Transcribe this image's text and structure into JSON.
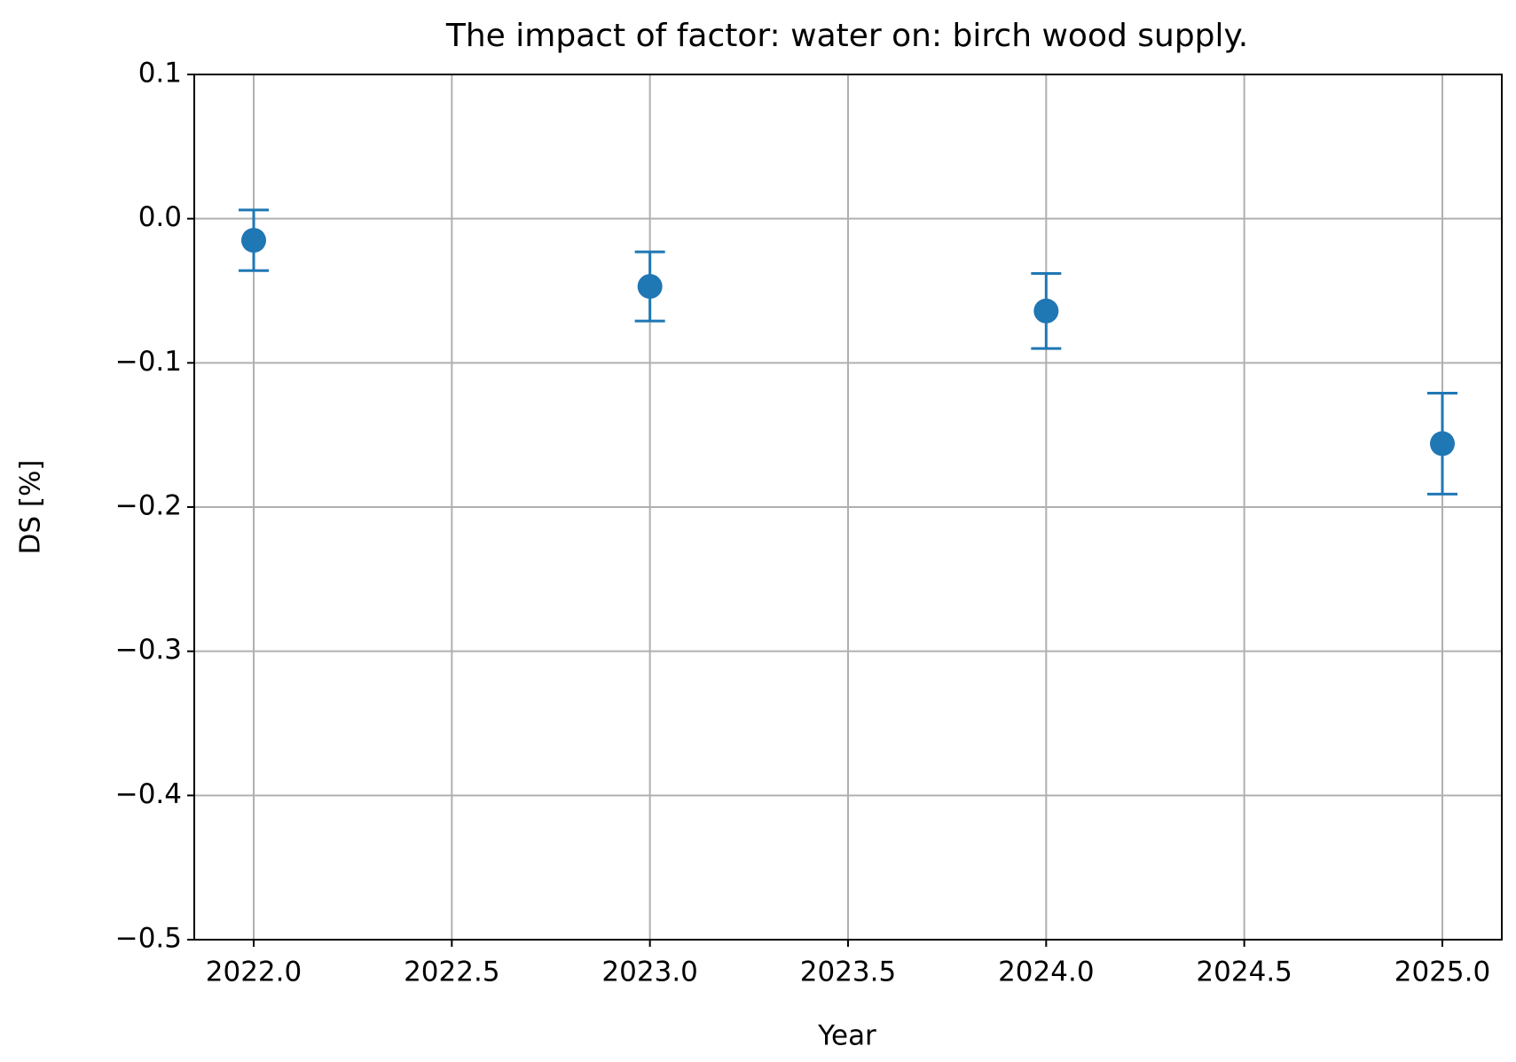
{
  "chart_data": {
    "type": "errorbar",
    "title": "The impact of factor: water on: birch wood supply.",
    "x_label": "Year",
    "y_label": "DS [%]",
    "x": [
      2022,
      2023,
      2024,
      2025
    ],
    "series": [
      {
        "color": "#1f77b4",
        "values": [
          -0.015,
          -0.047,
          -0.064,
          -0.156
        ],
        "errors": [
          0.021,
          0.024,
          0.026,
          0.035
        ]
      }
    ],
    "xlim": [
      2021.85,
      2025.15
    ],
    "xticks": [
      {
        "value": 2022,
        "label": "2022.0"
      },
      {
        "value": 2022.5,
        "label": "2022.5"
      },
      {
        "value": 2023,
        "label": "2023.0"
      },
      {
        "value": 2023.5,
        "label": "2023.5"
      },
      {
        "value": 2024,
        "label": "2024.0"
      },
      {
        "value": 2024.5,
        "label": "2024.5"
      },
      {
        "value": 2025,
        "label": "2025.0"
      }
    ],
    "ylim": [
      -0.5,
      0.1
    ],
    "yticks": [
      {
        "value": -0.5,
        "label": "−0.5"
      },
      {
        "value": -0.4,
        "label": "−0.4"
      },
      {
        "value": -0.3,
        "label": "−0.3"
      },
      {
        "value": -0.2,
        "label": "−0.2"
      },
      {
        "value": -0.1,
        "label": "−0.1"
      },
      {
        "value": 0,
        "label": "0.0"
      },
      0.1
    ],
    "grid": true
  }
}
